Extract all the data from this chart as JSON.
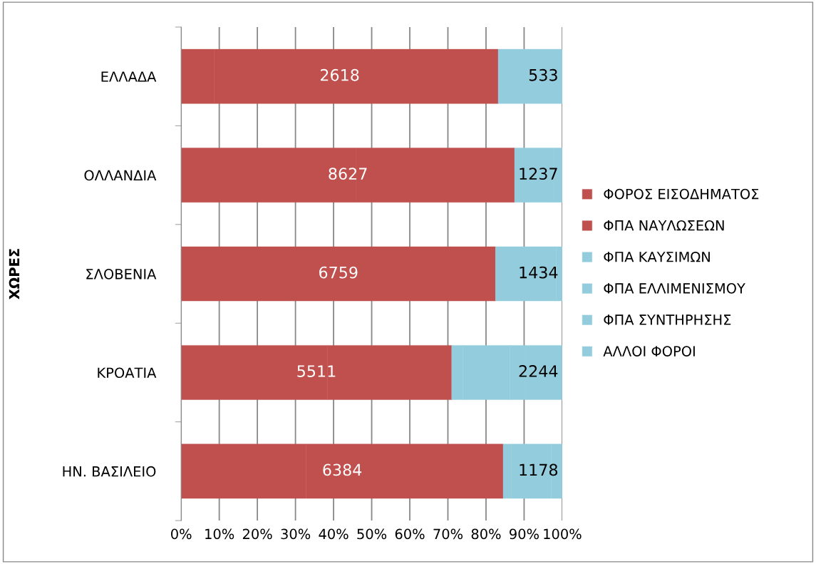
{
  "chart_data": {
    "type": "bar",
    "orientation": "horizontal",
    "stacked": true,
    "ylabel": "ΧΩΡΕΣ",
    "categories": [
      "ΕΛΛΑΔΑ",
      "ΟΛΛΑΝΔΙΑ",
      "ΣΛΟΒΕΝΙΑ",
      "ΚΡΟΑΤΙΑ",
      "ΗΝ. ΒΑΣΙΛΕΙΟ"
    ],
    "series": [
      {
        "name": "ΦΟΡΟΣ ΕΙΣΟΔΗΜΑΤΟΣ",
        "color": "#c0504d",
        "values": [
          8.6,
          45.8,
          30.0,
          38.4,
          32.8
        ]
      },
      {
        "name": "ΦΠΑ ΝΑΥΛΩΣΕΩΝ",
        "color": "#c0504d",
        "values": [
          74.6,
          41.7,
          52.5,
          32.6,
          51.7
        ]
      },
      {
        "name": "ΦΠΑ ΚΑΥΣΙΜΩΝ",
        "color": "#93cddd",
        "values": [
          16.8,
          10.1,
          15.9,
          2.9,
          2.1
        ]
      },
      {
        "name": "ΦΠΑ ΕΛΛΙΜΕΝΙΣΜΟΥ",
        "color": "#93cddd",
        "values": [
          0,
          2.4,
          1.6,
          12.4,
          10.5
        ]
      },
      {
        "name": "ΦΠΑ ΣΥΝΤΗΡΗΣΗΣ",
        "color": "#93cddd",
        "values": [
          0,
          0,
          0,
          3.9,
          2.9
        ]
      },
      {
        "name": "ΑΛΛΟΙ ΦΟΡΟΙ",
        "color": "#93cddd",
        "values": [
          0,
          0,
          0,
          9.8,
          0
        ]
      }
    ],
    "xlim": [
      0,
      100
    ],
    "xticks": [
      {
        "value": 0,
        "label": "0%"
      },
      {
        "value": 10,
        "label": "10%"
      },
      {
        "value": 20,
        "label": "20%"
      },
      {
        "value": 30,
        "label": "30%"
      },
      {
        "value": 40,
        "label": "40%"
      },
      {
        "value": 50,
        "label": "50%"
      },
      {
        "value": 60,
        "label": "60%"
      },
      {
        "value": 70,
        "label": "70%"
      },
      {
        "value": 80,
        "label": "80%"
      },
      {
        "value": 90,
        "label": "90%"
      },
      {
        "value": 100,
        "label": "100%"
      }
    ],
    "annotations": [
      "2618",
      "533",
      "8627",
      "1237",
      "6759",
      "1434",
      "5511",
      "2244",
      "6384",
      "1178"
    ],
    "grid": "x",
    "legend": "right"
  }
}
